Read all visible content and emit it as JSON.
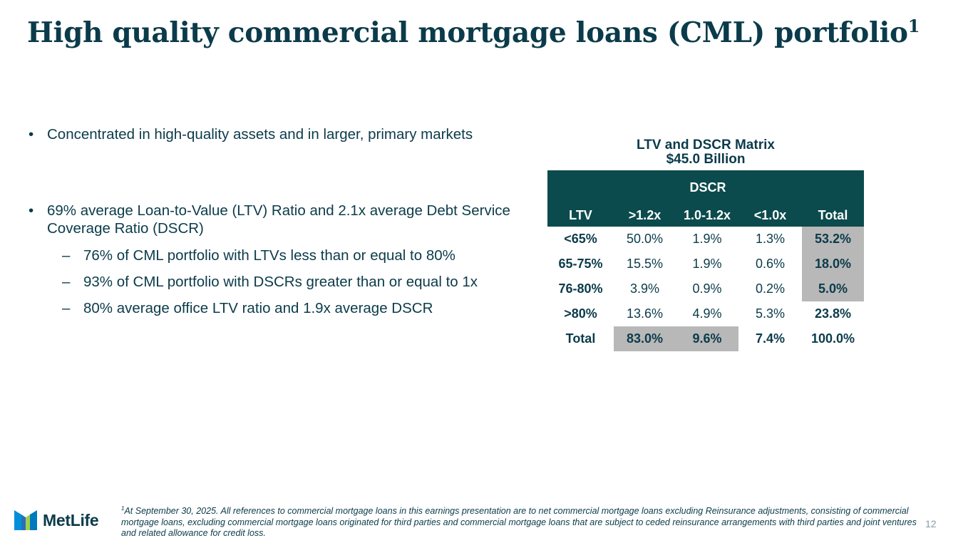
{
  "header": {
    "title": "High quality commercial mortgage loans (CML) portfolio",
    "title_sup": "1"
  },
  "bullets": {
    "b1": "Concentrated in high-quality assets and in larger, primary markets",
    "b2": "69% average Loan-to-Value (LTV) Ratio and 2.1x average Debt Service Coverage Ratio (DSCR)",
    "subs": [
      "76% of CML portfolio with LTVs less than or equal to 80%",
      "93% of CML portfolio with DSCRs greater than or equal to 1x",
      "80% average office LTV ratio and 1.9x average DSCR"
    ],
    "bullet_mark": "•",
    "sub_mark": "–"
  },
  "matrix": {
    "title": "LTV and DSCR Matrix",
    "subtitle": "$45.0 Billion",
    "group_header": "DSCR",
    "col_headers": [
      "LTV",
      ">1.2x",
      "1.0-1.2x",
      "<1.0x",
      "Total"
    ],
    "rows": [
      {
        "label": "<65%",
        "cells": [
          "50.0%",
          "1.9%",
          "1.3%",
          "53.2%"
        ]
      },
      {
        "label": "65-75%",
        "cells": [
          "15.5%",
          "1.9%",
          "0.6%",
          "18.0%"
        ]
      },
      {
        "label": "76-80%",
        "cells": [
          "3.9%",
          "0.9%",
          "0.2%",
          "5.0%"
        ]
      },
      {
        "label": ">80%",
        "cells": [
          "13.6%",
          "4.9%",
          "5.3%",
          "23.8%"
        ]
      },
      {
        "label": "Total",
        "cells": [
          "83.0%",
          "9.6%",
          "7.4%",
          "100.0%"
        ]
      }
    ],
    "colors": {
      "header_bg": "#0c4b4d",
      "shade": "#b8b8b8"
    }
  },
  "footnote": {
    "sup": "1",
    "text": "At September 30, 2025. All references to commercial mortgage loans in this earnings presentation are to net commercial mortgage loans excluding Reinsurance adjustments, consisting of commercial mortgage loans, excluding commercial mortgage loans originated for third parties and commercial mortgage loans that are subject to ceded reinsurance arrangements with third parties and joint ventures and related allowance for credit loss."
  },
  "footer": {
    "logo_text": "MetLife",
    "logo_icon": "metlife-m-icon",
    "page_number": "12"
  }
}
